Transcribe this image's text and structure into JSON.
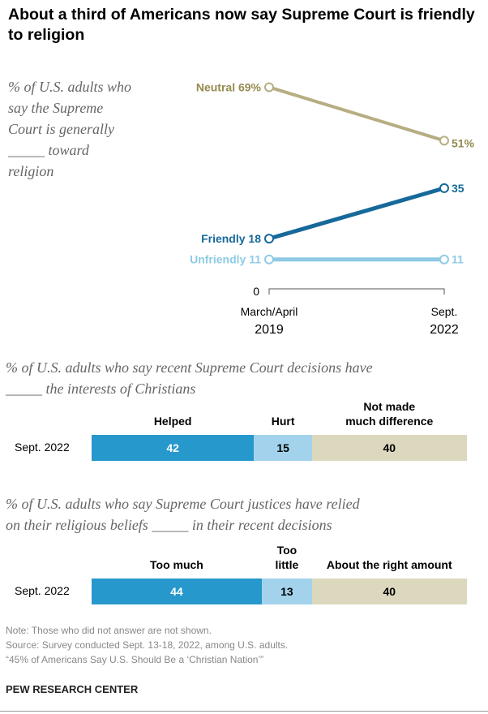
{
  "title": "About a third of Americans now say Supreme Court is friendly to religion",
  "colors": {
    "neutral": "#b6ae82",
    "neutral_text": "#958b4f",
    "friendly": "#17699a",
    "unfriendly": "#8fcbe6",
    "helped": "#2798cc",
    "hurt": "#a3d3ec",
    "no_diff": "#dcd8be"
  },
  "chart_data": [
    {
      "type": "line",
      "subtitle": "% of U.S. adults who say the Supreme Court is generally _____ toward religion",
      "subtitle_lines": [
        "% of U.S. adults who",
        "say the Supreme",
        "Court is generally",
        "_____ toward",
        "religion"
      ],
      "x": [
        "March/April 2019",
        "Sept. 2022"
      ],
      "x_tick_lines": [
        [
          "March/April",
          "2019"
        ],
        [
          "Sept.",
          "2022"
        ]
      ],
      "y_tick": "0",
      "ylim": [
        0,
        69
      ],
      "series": [
        {
          "name": "Neutral",
          "values": [
            69,
            51
          ],
          "labels": [
            "69%",
            "51%"
          ]
        },
        {
          "name": "Friendly",
          "values": [
            18,
            35
          ],
          "labels": [
            "18",
            "35"
          ]
        },
        {
          "name": "Unfriendly",
          "values": [
            11,
            11
          ],
          "labels": [
            "11",
            "11"
          ]
        }
      ]
    },
    {
      "type": "bar",
      "stacked": true,
      "subtitle_lines": [
        "% of U.S. adults who say recent Supreme Court decisions have",
        "_____ the interests of Christians"
      ],
      "categories": [
        "Sept. 2022"
      ],
      "series": [
        {
          "name": "Helped",
          "name_lines": [
            "Helped"
          ],
          "values": [
            42
          ]
        },
        {
          "name": "Hurt",
          "name_lines": [
            "Hurt"
          ],
          "values": [
            15
          ]
        },
        {
          "name": "Not made much difference",
          "name_lines": [
            "Not made",
            "much difference"
          ],
          "values": [
            40
          ]
        }
      ]
    },
    {
      "type": "bar",
      "stacked": true,
      "subtitle_lines": [
        "% of U.S. adults who say Supreme Court justices have relied",
        "on their religious beliefs _____ in their recent decisions"
      ],
      "categories": [
        "Sept. 2022"
      ],
      "series": [
        {
          "name": "Too much",
          "name_lines": [
            "Too much"
          ],
          "values": [
            44
          ]
        },
        {
          "name": "Too little",
          "name_lines": [
            "Too",
            "little"
          ],
          "values": [
            13
          ]
        },
        {
          "name": "About the right amount",
          "name_lines": [
            "About the right amount"
          ],
          "values": [
            40
          ]
        }
      ]
    }
  ],
  "footer": {
    "note": "Note: Those who did not answer are not shown.",
    "source": "Source: Survey conducted Sept. 13-18, 2022, among U.S. adults.",
    "report": "“45% of Americans Say U.S. Should Be a ‘Christian Nation’”",
    "brand": "PEW RESEARCH CENTER"
  }
}
